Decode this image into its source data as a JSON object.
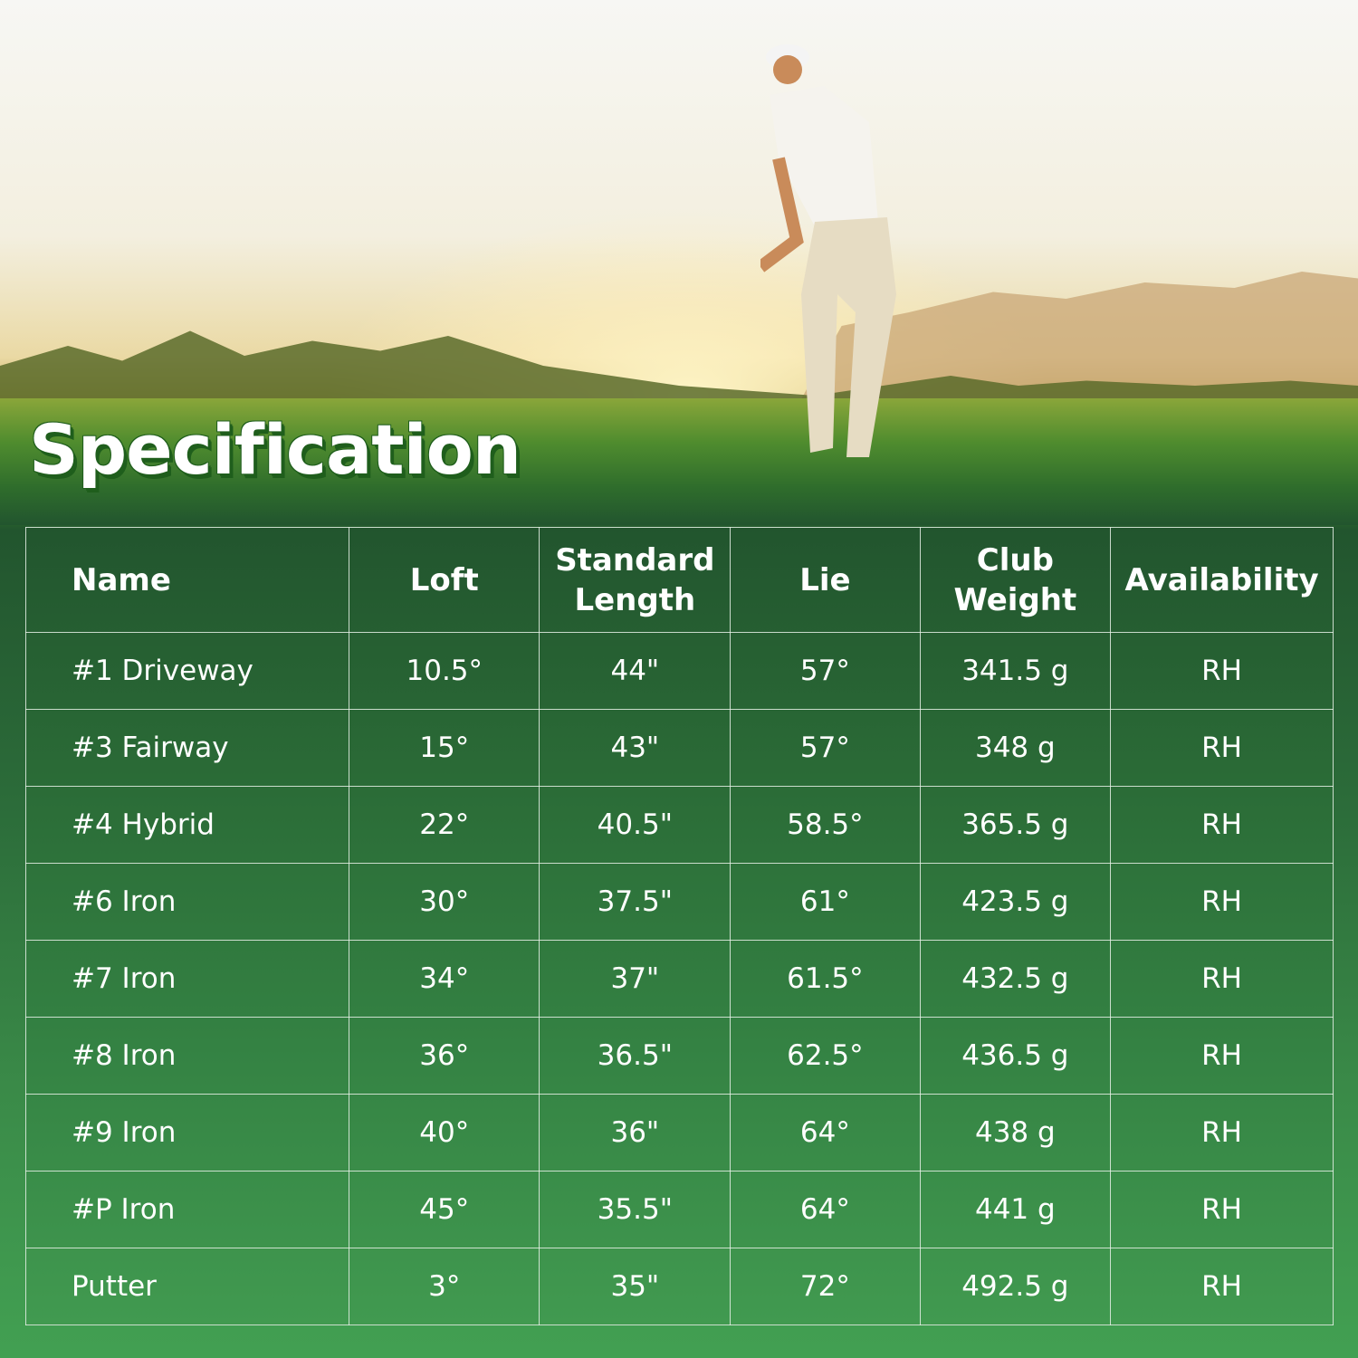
{
  "title": "Specification",
  "table": {
    "headers": [
      "Name",
      "Loft",
      "Standard Length",
      "Lie",
      "Club Weight",
      "Availability"
    ],
    "rows": [
      [
        "#1 Driveway",
        "10.5°",
        "44\"",
        "57°",
        "341.5 g",
        "RH"
      ],
      [
        "#3 Fairway",
        "15°",
        "43\"",
        "57°",
        "348 g",
        "RH"
      ],
      [
        "#4 Hybrid",
        "22°",
        "40.5\"",
        "58.5°",
        "365.5 g",
        "RH"
      ],
      [
        "#6 Iron",
        "30°",
        "37.5\"",
        "61°",
        "423.5 g",
        "RH"
      ],
      [
        "#7 Iron",
        "34°",
        "37\"",
        "61.5°",
        "432.5 g",
        "RH"
      ],
      [
        "#8 Iron",
        "36°",
        "36.5\"",
        "62.5°",
        "436.5 g",
        "RH"
      ],
      [
        "#9 Iron",
        "40°",
        "36\"",
        "64°",
        "438 g",
        "RH"
      ],
      [
        "#P Iron",
        "45°",
        "35.5\"",
        "64°",
        "441 g",
        "RH"
      ],
      [
        "Putter",
        "3°",
        "35\"",
        "72°",
        "492.5 g",
        "RH"
      ]
    ]
  },
  "colors": {
    "table_top": "#22552e",
    "table_bottom": "#419a50",
    "title_outline": "#1f5e1c"
  }
}
